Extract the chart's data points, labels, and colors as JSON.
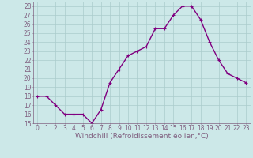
{
  "x": [
    0,
    1,
    2,
    3,
    4,
    5,
    6,
    7,
    8,
    9,
    10,
    11,
    12,
    13,
    14,
    15,
    16,
    17,
    18,
    19,
    20,
    21,
    22,
    23
  ],
  "y": [
    18,
    18,
    17,
    16,
    16,
    16,
    15,
    16.5,
    19.5,
    21,
    22.5,
    23,
    23.5,
    25.5,
    25.5,
    27,
    28,
    28,
    26.5,
    24,
    22,
    20.5,
    20,
    19.5
  ],
  "line_color": "#800080",
  "marker": "P",
  "marker_size": 2.5,
  "bg_color": "#cce8e8",
  "grid_color": "#aacccc",
  "xlabel": "Windchill (Refroidissement éolien,°C)",
  "xlabel_fontsize": 6.5,
  "yticks": [
    15,
    16,
    17,
    18,
    19,
    20,
    21,
    22,
    23,
    24,
    25,
    26,
    27,
    28
  ],
  "xticks": [
    0,
    1,
    2,
    3,
    4,
    5,
    6,
    7,
    8,
    9,
    10,
    11,
    12,
    13,
    14,
    15,
    16,
    17,
    18,
    19,
    20,
    21,
    22,
    23
  ],
  "ylim": [
    15,
    28.5
  ],
  "xlim": [
    -0.5,
    23.5
  ],
  "tick_fontsize": 5.5,
  "line_width": 1.0,
  "spine_color": "#806080"
}
